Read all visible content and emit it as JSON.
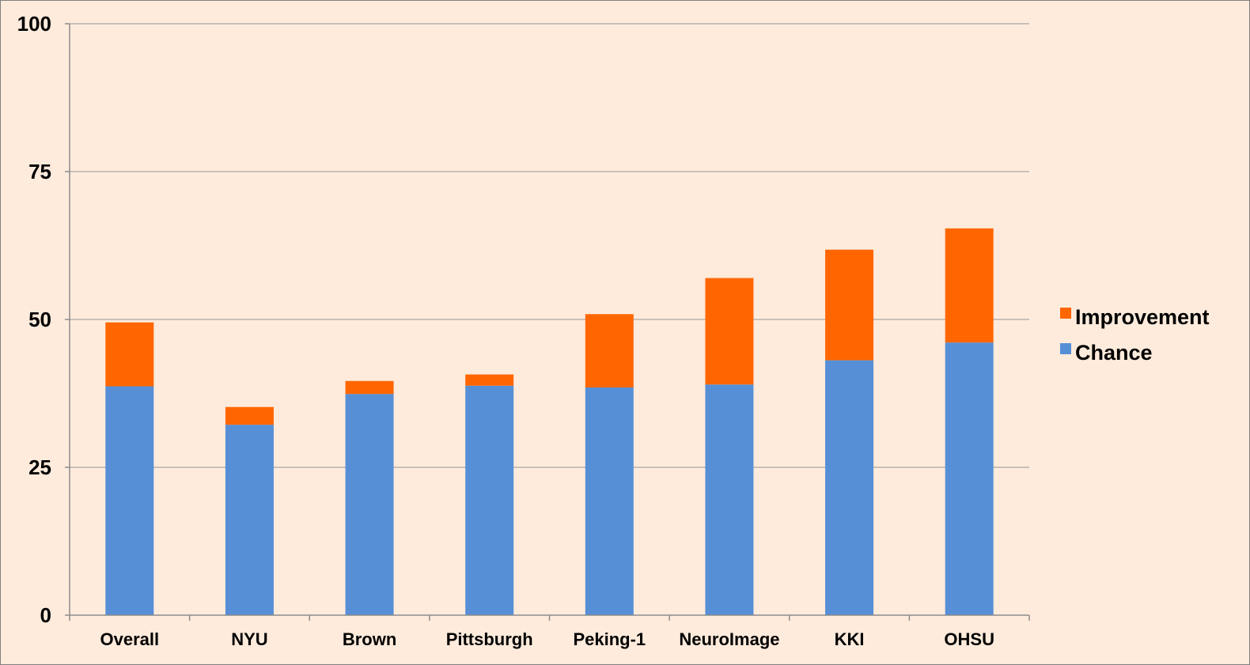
{
  "chart_data": {
    "type": "bar",
    "stacked": true,
    "title": "",
    "xlabel": "",
    "ylabel": "",
    "categories": [
      "Overall",
      "NYU",
      "Brown",
      "Pittsburgh",
      "Peking-1",
      "NeuroImage",
      "KKI",
      "OHSU"
    ],
    "series": [
      {
        "name": "Chance",
        "color": "#568fd6",
        "values": [
          38.7,
          32.2,
          37.4,
          38.8,
          38.5,
          39.0,
          43.1,
          46.1
        ]
      },
      {
        "name": "Improvement",
        "color": "#ff6600",
        "values": [
          10.8,
          3.0,
          2.2,
          1.9,
          12.4,
          18.0,
          18.7,
          19.3
        ]
      }
    ],
    "ylim": [
      0,
      100
    ],
    "yticks": [
      "0",
      "25",
      "50",
      "75",
      "100"
    ],
    "grid": true,
    "legend": "right",
    "legend_order": [
      "Improvement",
      "Chance"
    ]
  }
}
